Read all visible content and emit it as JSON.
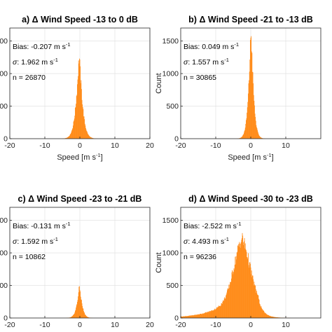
{
  "chart_data": [
    {
      "type": "bar",
      "panel": "a",
      "title": "a) Δ Wind Speed -13 to 0 dB",
      "xlabel": "Speed [m s",
      "xlabel_sup": "-1",
      "xlabel_end": "]",
      "ylabel": "",
      "xlim": [
        -20,
        20
      ],
      "ylim": [
        0,
        1700
      ],
      "xticks": [
        -20,
        -10,
        0,
        10,
        20
      ],
      "yticks": [
        0,
        500,
        1000,
        1500
      ],
      "ytick_labels": [
        "0",
        "00",
        "00",
        "00"
      ],
      "color": "#FF8C1A",
      "stats": {
        "bias_label": "Bias: -0.207 m s",
        "bias_sup": "-1",
        "sigma_label": ": 1.962 m s",
        "sigma_sup": "-1",
        "n_label": "n = 26870"
      },
      "distribution": {
        "center": -0.207,
        "sigma": 1.962,
        "n": 26870,
        "peak": 1260
      }
    },
    {
      "type": "bar",
      "panel": "b",
      "title": "b) Δ Wind Speed -21 to -13 dB",
      "xlabel": "Speed [m s",
      "xlabel_sup": "-1",
      "xlabel_end": "]",
      "ylabel": "Count",
      "xlim": [
        -20,
        20
      ],
      "ylim": [
        0,
        1700
      ],
      "xticks": [
        -20,
        -10,
        0,
        10
      ],
      "yticks": [
        0,
        500,
        1000,
        1500
      ],
      "ytick_labels": [
        "0",
        "500",
        "1000",
        "1500"
      ],
      "color": "#FF8C1A",
      "stats": {
        "bias_label": "Bias: 0.049 m s",
        "bias_sup": "-1",
        "sigma_label": ": 1.557 m s",
        "sigma_sup": "-1",
        "n_label": "n = 30865"
      },
      "distribution": {
        "center": 0.049,
        "sigma": 1.557,
        "n": 30865,
        "peak": 1640
      }
    },
    {
      "type": "bar",
      "panel": "c",
      "title": "c) Δ Wind Speed -23 to -21 dB",
      "xlabel": "Speed [m s",
      "xlabel_sup": "-1",
      "xlabel_end": "]",
      "ylabel": "",
      "xlim": [
        -20,
        20
      ],
      "ylim": [
        0,
        1700
      ],
      "xticks": [
        -20,
        -10,
        0,
        10,
        20
      ],
      "yticks": [
        0,
        500,
        1000,
        1500
      ],
      "ytick_labels": [
        "0",
        "00",
        "00",
        "00"
      ],
      "color": "#FF8C1A",
      "stats": {
        "bias_label": "Bias: -0.131 m s",
        "bias_sup": "-1",
        "sigma_label": ": 1.592 m s",
        "sigma_sup": "-1",
        "n_label": "n = 10862"
      },
      "distribution": {
        "center": -0.131,
        "sigma": 1.592,
        "n": 10862,
        "peak": 480
      }
    },
    {
      "type": "bar",
      "panel": "d",
      "title": "d) Δ Wind Speed -30 to -23 dB",
      "xlabel": "Speed [m s",
      "xlabel_sup": "-1",
      "xlabel_end": "]",
      "ylabel": "Count",
      "xlim": [
        -20,
        20
      ],
      "ylim": [
        0,
        1700
      ],
      "xticks": [
        -20,
        -10,
        0,
        10
      ],
      "yticks": [
        0,
        500,
        1000,
        1500
      ],
      "ytick_labels": [
        "0",
        "500",
        "1000",
        "1500"
      ],
      "color": "#FF8C1A",
      "stats": {
        "bias_label": "Bias: -2.522 m s",
        "bias_sup": "-1",
        "sigma_label": ": 4.493 m s",
        "sigma_sup": "-1",
        "n_label": "n = 96236"
      },
      "distribution": {
        "center": -2.522,
        "sigma": 4.493,
        "n": 96236,
        "peak": 1230
      }
    }
  ]
}
